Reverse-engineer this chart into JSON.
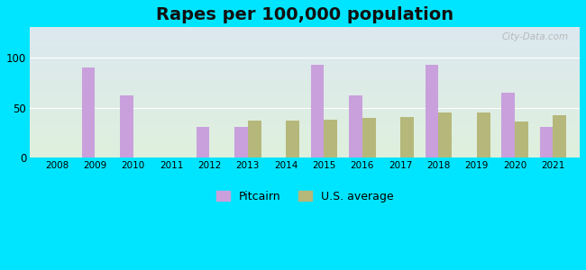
{
  "title": "Rapes per 100,000 population",
  "years": [
    2008,
    2009,
    2010,
    2011,
    2012,
    2013,
    2014,
    2015,
    2016,
    2017,
    2018,
    2019,
    2020,
    2021
  ],
  "pitcairn": [
    0,
    90,
    62,
    0,
    31,
    31,
    0,
    93,
    62,
    0,
    93,
    0,
    65,
    31
  ],
  "us_average": [
    0,
    0,
    0,
    0,
    0,
    37,
    37,
    38,
    40,
    41,
    45,
    45,
    36,
    42
  ],
  "pitcairn_color": "#c9a0dc",
  "us_avg_color": "#b5b87a",
  "background_top": "#dce8f0",
  "background_bottom": "#dff0dd",
  "outer_bg": "#00e5ff",
  "ylim": [
    0,
    130
  ],
  "yticks": [
    0,
    50,
    100
  ],
  "bar_width": 0.35,
  "title_fontsize": 14,
  "watermark": "City-Data.com"
}
